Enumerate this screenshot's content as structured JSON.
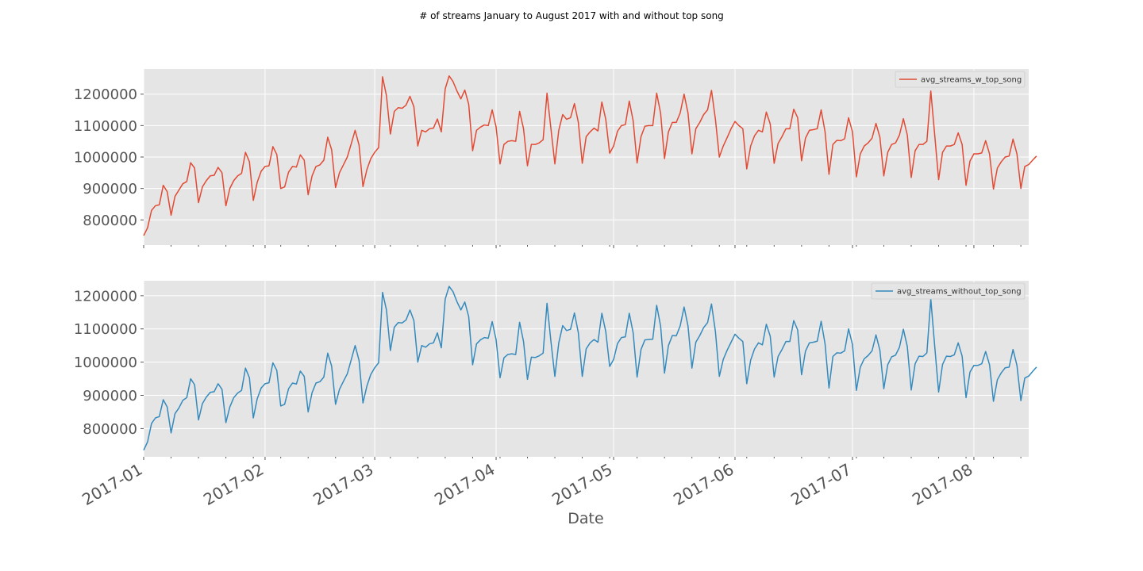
{
  "chart_data": {
    "type": "line",
    "title": "# of streams January to August 2017 with and without top song",
    "xlabel": "Date",
    "x_range": [
      "2017-01-01",
      "2017-08-15"
    ],
    "x_tick_labels": [
      "2017-01",
      "2017-02",
      "2017-03",
      "2017-04",
      "2017-05",
      "2017-06",
      "2017-07",
      "2017-08"
    ],
    "y_tick_labels": [
      "800000",
      "900000",
      "1000000",
      "1100000",
      "1200000"
    ],
    "grid": true,
    "legend_placement": "top-right",
    "subplots": [
      {
        "ylim": [
          720000,
          1280000
        ],
        "series": [
          {
            "name": "avg_streams_w_top_song",
            "color": "#e24a33",
            "x_start": "2017-01-01",
            "frequency": "daily",
            "values": [
              750000,
              775000,
              830000,
              845000,
              848000,
              910000,
              890000,
              815000,
              875000,
              895000,
              915000,
              922000,
              982000,
              965000,
              855000,
              905000,
              925000,
              940000,
              942000,
              967000,
              950000,
              845000,
              900000,
              925000,
              940000,
              948000,
              1015000,
              985000,
              862000,
              920000,
              955000,
              970000,
              972000,
              1033000,
              1008000,
              900000,
              905000,
              952000,
              970000,
              968000,
              1007000,
              990000,
              880000,
              940000,
              970000,
              975000,
              990000,
              1063000,
              1023000,
              903000,
              950000,
              975000,
              1000000,
              1042000,
              1085000,
              1038000,
              906000,
              960000,
              995000,
              1015000,
              1030000,
              1255000,
              1195000,
              1073000,
              1145000,
              1157000,
              1155000,
              1165000,
              1193000,
              1160000,
              1035000,
              1085000,
              1080000,
              1090000,
              1092000,
              1121000,
              1080000,
              1217000,
              1258000,
              1240000,
              1210000,
              1185000,
              1213000,
              1168000,
              1020000,
              1085000,
              1095000,
              1102000,
              1100000,
              1150000,
              1095000,
              978000,
              1040000,
              1050000,
              1052000,
              1050000,
              1145000,
              1090000,
              972000,
              1040000,
              1040000,
              1045000,
              1055000,
              1203000,
              1090000,
              978000,
              1085000,
              1135000,
              1120000,
              1125000,
              1170000,
              1110000,
              980000,
              1065000,
              1080000,
              1092000,
              1083000,
              1175000,
              1120000,
              1012000,
              1035000,
              1082000,
              1100000,
              1103000,
              1178000,
              1115000,
              981000,
              1065000,
              1098000,
              1100000,
              1100000,
              1203000,
              1140000,
              995000,
              1080000,
              1110000,
              1110000,
              1140000,
              1200000,
              1140000,
              1010000,
              1090000,
              1110000,
              1135000,
              1150000,
              1212000,
              1120000,
              1000000,
              1035000,
              1062000,
              1090000,
              1113000,
              1100000,
              1090000,
              962000,
              1035000,
              1068000,
              1085000,
              1080000,
              1143000,
              1105000,
              980000,
              1043000,
              1065000,
              1090000,
              1090000,
              1152000,
              1125000,
              988000,
              1060000,
              1085000,
              1087000,
              1090000,
              1150000,
              1080000,
              945000,
              1040000,
              1053000,
              1052000,
              1058000,
              1125000,
              1080000,
              937000,
              1010000,
              1035000,
              1045000,
              1060000,
              1107000,
              1063000,
              940000,
              1015000,
              1040000,
              1045000,
              1070000,
              1122000,
              1070000,
              935000,
              1020000,
              1040000,
              1040000,
              1050000,
              1210000,
              1070000,
              928000,
              1015000,
              1035000,
              1035000,
              1040000,
              1077000,
              1040000,
              910000,
              987000,
              1010000,
              1010000,
              1013000,
              1052000,
              1010000,
              898000,
              965000,
              985000,
              1000000,
              1003000,
              1057000,
              1010000,
              900000,
              970000,
              976000,
              990000,
              1003000
            ]
          }
        ]
      },
      {
        "ylim": [
          715000,
          1245000
        ],
        "series": [
          {
            "name": "avg_streams_without_top_song",
            "color": "#348abd",
            "x_start": "2017-01-01",
            "frequency": "daily",
            "values": [
              735000,
              760000,
              815000,
              832000,
              836000,
              887000,
              865000,
              787000,
              845000,
              862000,
              885000,
              893000,
              950000,
              932000,
              826000,
              875000,
              895000,
              909000,
              911000,
              935000,
              918000,
              818000,
              865000,
              893000,
              907000,
              915000,
              982000,
              953000,
              832000,
              890000,
              922000,
              935000,
              938000,
              998000,
              975000,
              868000,
              873000,
              920000,
              937000,
              934000,
              973000,
              957000,
              850000,
              908000,
              937000,
              941000,
              955000,
              1027000,
              988000,
              873000,
              918000,
              942000,
              965000,
              1007000,
              1050000,
              1005000,
              877000,
              928000,
              963000,
              983000,
              998000,
              1210000,
              1157000,
              1035000,
              1105000,
              1119000,
              1118000,
              1127000,
              1157000,
              1125000,
              1000000,
              1050000,
              1045000,
              1055000,
              1058000,
              1088000,
              1043000,
              1190000,
              1228000,
              1212000,
              1182000,
              1157000,
              1181000,
              1137000,
              992000,
              1055000,
              1067000,
              1074000,
              1072000,
              1122000,
              1067000,
              953000,
              1013000,
              1023000,
              1025000,
              1023000,
              1120000,
              1062000,
              948000,
              1015000,
              1014000,
              1019000,
              1027000,
              1177000,
              1062000,
              957000,
              1058000,
              1110000,
              1095000,
              1099000,
              1148000,
              1088000,
              957000,
              1040000,
              1058000,
              1068000,
              1060000,
              1147000,
              1092000,
              987000,
              1008000,
              1056000,
              1074000,
              1076000,
              1147000,
              1088000,
              955000,
              1038000,
              1067000,
              1068000,
              1069000,
              1171000,
              1109000,
              967000,
              1050000,
              1080000,
              1079000,
              1109000,
              1166000,
              1109000,
              982000,
              1060000,
              1080000,
              1104000,
              1119000,
              1175000,
              1092000,
              957000,
              1008000,
              1036000,
              1060000,
              1084000,
              1072000,
              1062000,
              935000,
              1006000,
              1040000,
              1058000,
              1052000,
              1114000,
              1078000,
              955000,
              1017000,
              1038000,
              1062000,
              1062000,
              1125000,
              1097000,
              962000,
              1033000,
              1058000,
              1060000,
              1063000,
              1123000,
              1055000,
              922000,
              1017000,
              1028000,
              1027000,
              1034000,
              1100000,
              1053000,
              915000,
              985000,
              1010000,
              1020000,
              1034000,
              1082000,
              1036000,
              920000,
              992000,
              1016000,
              1021000,
              1045000,
              1099000,
              1047000,
              916000,
              995000,
              1018000,
              1017000,
              1028000,
              1190000,
              1048000,
              910000,
              993000,
              1018000,
              1017000,
              1022000,
              1058000,
              1018000,
              893000,
              970000,
              990000,
              990000,
              995000,
              1032000,
              992000,
              882000,
              947000,
              968000,
              983000,
              985000,
              1038000,
              990000,
              884000,
              952000,
              958000,
              972000,
              985000
            ]
          }
        ]
      }
    ]
  }
}
